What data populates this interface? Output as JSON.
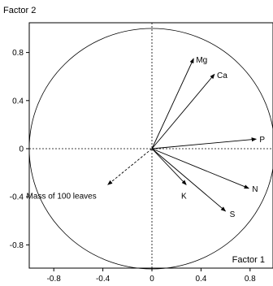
{
  "chart_data": {
    "type": "scatter",
    "title": "",
    "xlabel": "Factor 1",
    "ylabel": "Factor 2",
    "xlim": [
      -1.05,
      1.05
    ],
    "ylim": [
      -1.05,
      1.05
    ],
    "x_ticks": [
      -0.8,
      -0.4,
      0,
      0.4,
      0.8
    ],
    "y_ticks": [
      0.8,
      0.4,
      0,
      -0.4,
      -0.8
    ],
    "unit_circle_radius": 1,
    "grid": false,
    "vectors": [
      {
        "label": "Mg",
        "x": 0.34,
        "y": 0.75,
        "style": "solid"
      },
      {
        "label": "Ca",
        "x": 0.51,
        "y": 0.62,
        "style": "solid"
      },
      {
        "label": "P",
        "x": 0.85,
        "y": 0.08,
        "style": "solid"
      },
      {
        "label": "N",
        "x": 0.79,
        "y": -0.33,
        "style": "solid"
      },
      {
        "label": "S",
        "x": 0.6,
        "y": -0.52,
        "style": "solid"
      },
      {
        "label": "K",
        "x": 0.28,
        "y": -0.3,
        "style": "solid"
      },
      {
        "label": "Mass of 100 leaves",
        "x": -0.36,
        "y": -0.3,
        "style": "dashed"
      }
    ]
  }
}
